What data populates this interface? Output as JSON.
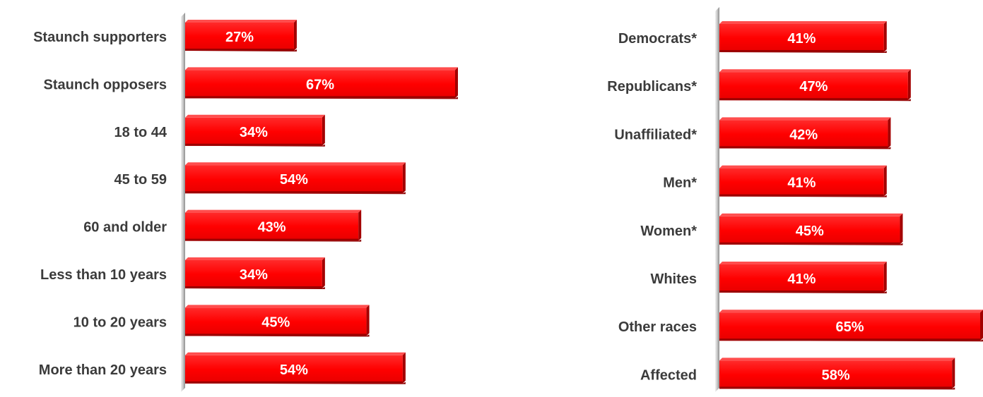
{
  "chart_data": [
    {
      "type": "bar",
      "orientation": "horizontal",
      "categories": [
        "Staunch supporters",
        "Staunch opposers",
        "18 to 44",
        "45 to 59",
        "60 and older",
        "Less than 10 years",
        "10 to 20 years",
        "More than 20 years"
      ],
      "values": [
        27,
        67,
        34,
        54,
        43,
        34,
        45,
        54
      ],
      "value_labels": [
        "27%",
        "67%",
        "34%",
        "54%",
        "43%",
        "34%",
        "45%",
        "54%"
      ],
      "xlim": [
        0,
        67
      ],
      "bar_color": "#ff0000",
      "grid": false,
      "legend": "none"
    },
    {
      "type": "bar",
      "orientation": "horizontal",
      "categories": [
        "Democrats*",
        "Republicans*",
        "Unaffiliated*",
        "Men*",
        "Women*",
        "Whites",
        "Other races",
        "Affected"
      ],
      "values": [
        41,
        47,
        42,
        41,
        45,
        41,
        65,
        58
      ],
      "value_labels": [
        "41%",
        "47%",
        "42%",
        "41%",
        "45%",
        "41%",
        "65%",
        "58%"
      ],
      "xlim": [
        0,
        65
      ],
      "bar_color": "#ff0000",
      "grid": false,
      "legend": "none"
    }
  ]
}
